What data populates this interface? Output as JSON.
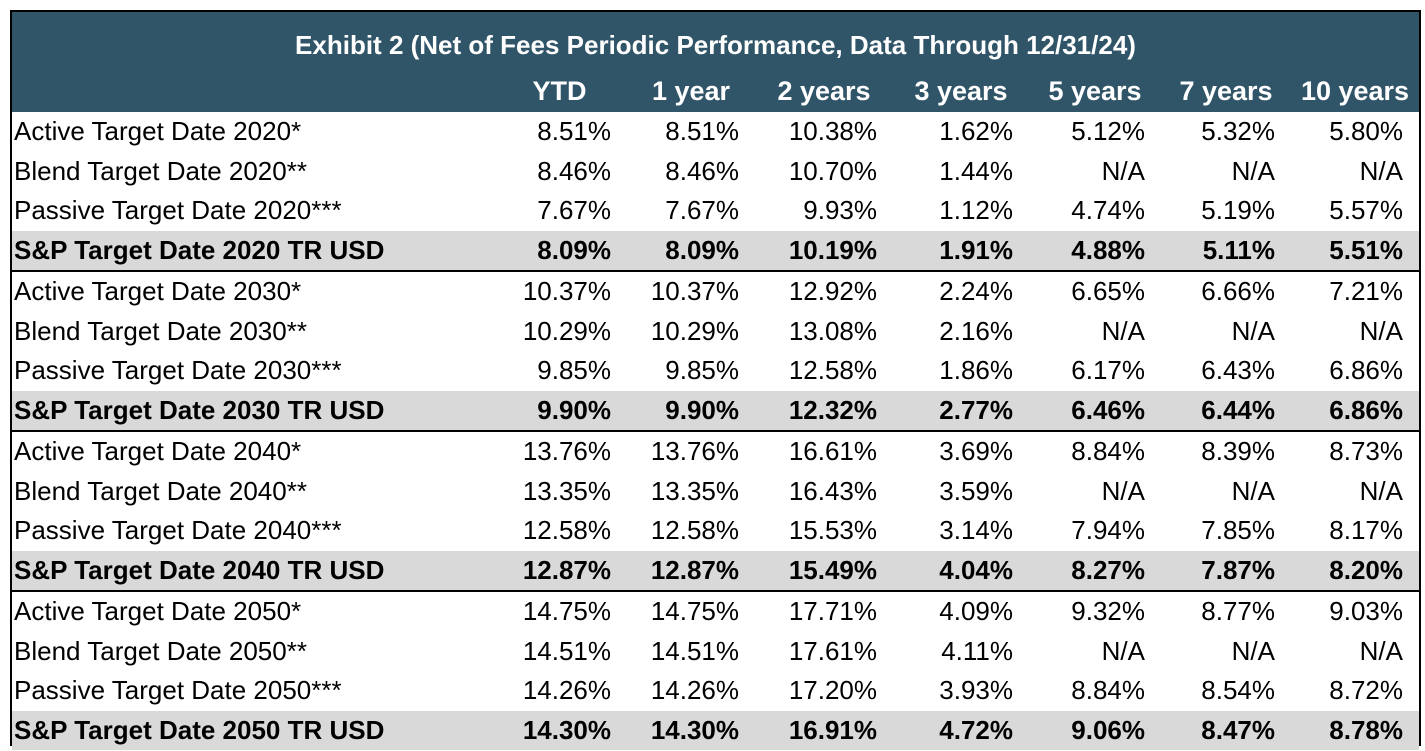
{
  "title": "Exhibit 2 (Net of Fees Periodic Performance, Data Through 12/31/24)",
  "columns": [
    "YTD",
    "1 year",
    "2 years",
    "3 years",
    "5 years",
    "7 years",
    "10 years"
  ],
  "rows": [
    {
      "label": "Active Target Date 2020*",
      "values": [
        "8.51%",
        "8.51%",
        "10.38%",
        "1.62%",
        "5.12%",
        "5.32%",
        "5.80%"
      ]
    },
    {
      "label": "Blend Target Date 2020**",
      "values": [
        "8.46%",
        "8.46%",
        "10.70%",
        "1.44%",
        "N/A",
        "N/A",
        "N/A"
      ]
    },
    {
      "label": "Passive Target Date 2020***",
      "values": [
        "7.67%",
        "7.67%",
        "9.93%",
        "1.12%",
        "4.74%",
        "5.19%",
        "5.57%"
      ]
    },
    {
      "label": "S&P Target Date 2020 TR USD",
      "values": [
        "8.09%",
        "8.09%",
        "10.19%",
        "1.91%",
        "4.88%",
        "5.11%",
        "5.51%"
      ]
    },
    {
      "label": "Active Target Date 2030*",
      "values": [
        "10.37%",
        "10.37%",
        "12.92%",
        "2.24%",
        "6.65%",
        "6.66%",
        "7.21%"
      ]
    },
    {
      "label": "Blend Target Date 2030**",
      "values": [
        "10.29%",
        "10.29%",
        "13.08%",
        "2.16%",
        "N/A",
        "N/A",
        "N/A"
      ]
    },
    {
      "label": "Passive Target Date 2030***",
      "values": [
        "9.85%",
        "9.85%",
        "12.58%",
        "1.86%",
        "6.17%",
        "6.43%",
        "6.86%"
      ]
    },
    {
      "label": "S&P Target Date 2030 TR USD",
      "values": [
        "9.90%",
        "9.90%",
        "12.32%",
        "2.77%",
        "6.46%",
        "6.44%",
        "6.86%"
      ]
    },
    {
      "label": "Active Target Date 2040*",
      "values": [
        "13.76%",
        "13.76%",
        "16.61%",
        "3.69%",
        "8.84%",
        "8.39%",
        "8.73%"
      ]
    },
    {
      "label": "Blend Target Date 2040**",
      "values": [
        "13.35%",
        "13.35%",
        "16.43%",
        "3.59%",
        "N/A",
        "N/A",
        "N/A"
      ]
    },
    {
      "label": "Passive Target Date 2040***",
      "values": [
        "12.58%",
        "12.58%",
        "15.53%",
        "3.14%",
        "7.94%",
        "7.85%",
        "8.17%"
      ]
    },
    {
      "label": "S&P Target Date 2040 TR USD",
      "values": [
        "12.87%",
        "12.87%",
        "15.49%",
        "4.04%",
        "8.27%",
        "7.87%",
        "8.20%"
      ]
    },
    {
      "label": "Active Target Date 2050*",
      "values": [
        "14.75%",
        "14.75%",
        "17.71%",
        "4.09%",
        "9.32%",
        "8.77%",
        "9.03%"
      ]
    },
    {
      "label": "Blend Target Date 2050**",
      "values": [
        "14.51%",
        "14.51%",
        "17.61%",
        "4.11%",
        "N/A",
        "N/A",
        "N/A"
      ]
    },
    {
      "label": "Passive Target Date 2050***",
      "values": [
        "14.26%",
        "14.26%",
        "17.20%",
        "3.93%",
        "8.84%",
        "8.54%",
        "8.72%"
      ]
    },
    {
      "label": "S&P Target Date 2050 TR USD",
      "values": [
        "14.30%",
        "14.30%",
        "16.91%",
        "4.72%",
        "9.06%",
        "8.47%",
        "8.78%"
      ]
    }
  ],
  "colors": {
    "header_bg": "#305568",
    "benchmark_bg": "#d9d9d9"
  }
}
